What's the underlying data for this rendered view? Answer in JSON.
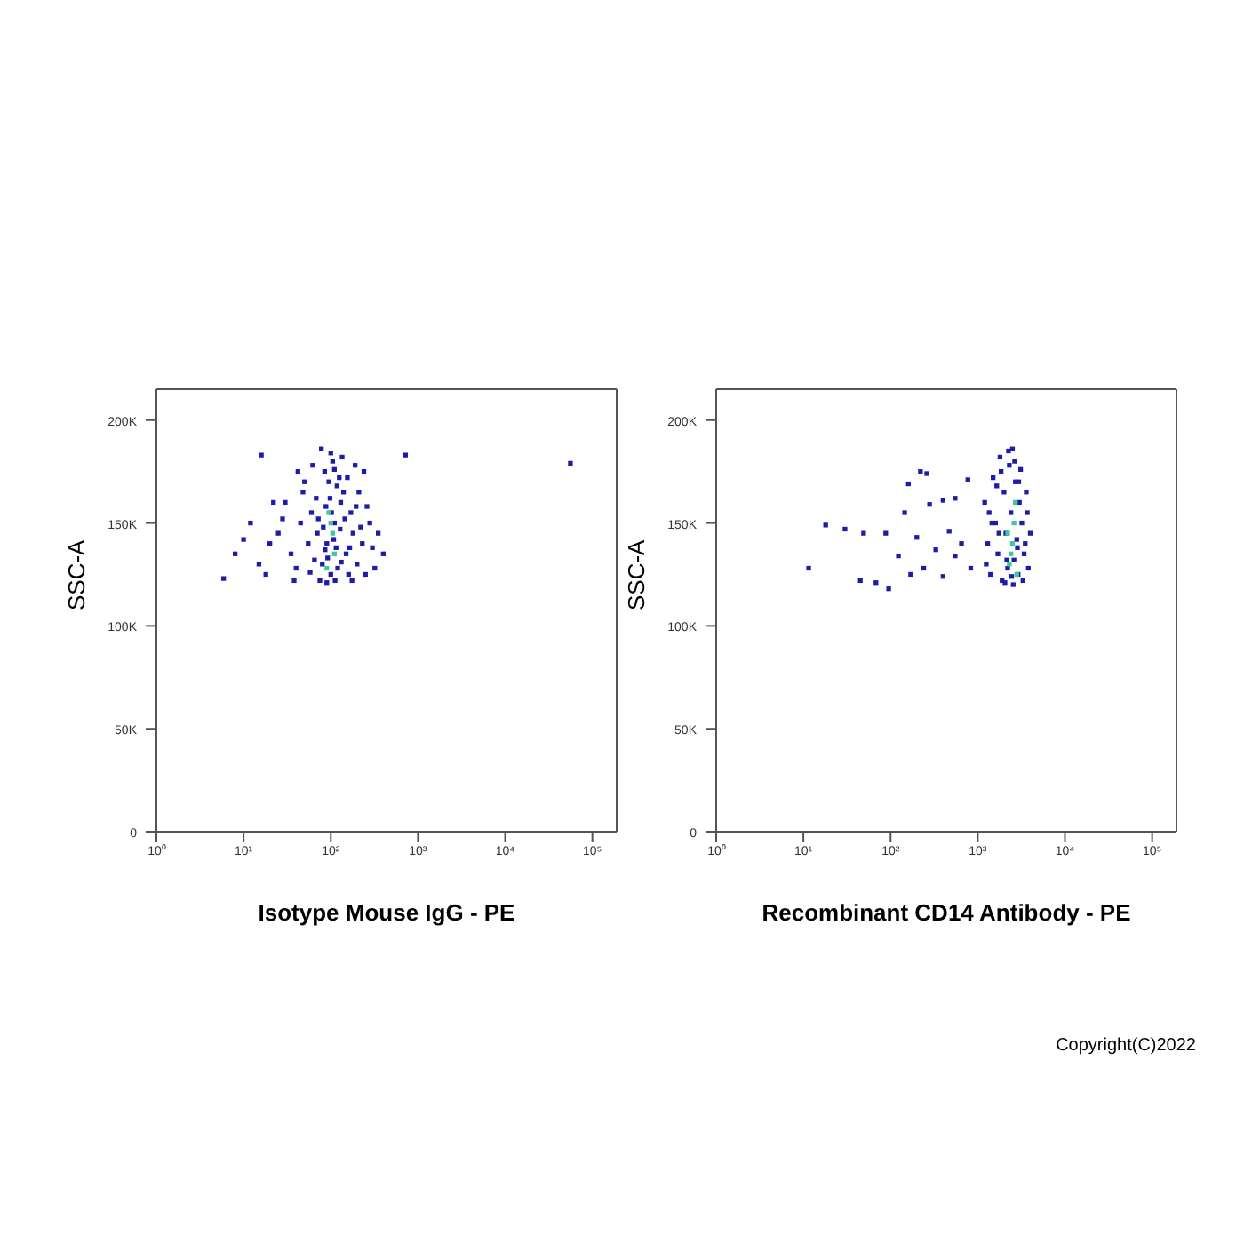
{
  "chart_data": [
    {
      "type": "scatter",
      "xlabel": "Isotype Mouse IgG - PE",
      "ylabel": "SSC-A",
      "log": "x",
      "marker": "square",
      "xlim": [
        1,
        190000
      ],
      "ylim": [
        0,
        215000
      ],
      "xticks": [
        {
          "value": 1,
          "label": "10⁰"
        },
        {
          "value": 10,
          "label": "10¹"
        },
        {
          "value": 100,
          "label": "10²"
        },
        {
          "value": 1000,
          "label": "10³"
        },
        {
          "value": 10000,
          "label": "10⁴"
        },
        {
          "value": 100000,
          "label": "10⁵"
        }
      ],
      "yticks": [
        0,
        {
          "value": 50000,
          "label": "50K"
        },
        {
          "value": 100000,
          "label": "100K"
        },
        {
          "value": 150000,
          "label": "150K"
        },
        {
          "value": 200000,
          "label": "200K"
        }
      ],
      "series": [
        {
          "color": "#1c1ca8",
          "x": [
            100,
            80,
            120,
            90,
            110,
            70,
            130,
            95,
            105,
            85,
            150,
            60,
            140,
            75,
            160,
            115,
            88,
            125,
            100,
            65,
            180,
            200,
            170,
            55,
            45,
            40,
            35,
            30,
            50,
            210,
            230,
            250,
            300,
            280,
            240,
            190,
            135,
            78,
            62,
            48,
            25,
            20,
            15,
            12,
            10,
            8,
            18,
            22,
            28,
            38,
            42,
            58,
            68,
            82,
            92,
            98,
            108,
            112,
            118,
            128,
            145,
            155,
            165,
            175,
            195,
            220,
            260,
            350,
            400,
            320,
            5.9,
            16,
            720,
            56000,
            90,
            102,
            86,
            132,
            72,
            110
          ],
          "values": [
            125000,
            130000,
            128000,
            140000,
            150000,
            145000,
            160000,
            170000,
            180000,
            175000,
            135000,
            155000,
            165000,
            122000,
            125000,
            138000,
            158000,
            172000,
            184000,
            132000,
            145000,
            130000,
            155000,
            140000,
            150000,
            128000,
            135000,
            160000,
            170000,
            165000,
            140000,
            125000,
            138000,
            150000,
            175000,
            178000,
            182000,
            186000,
            178000,
            165000,
            145000,
            140000,
            130000,
            150000,
            142000,
            135000,
            125000,
            160000,
            152000,
            122000,
            175000,
            126000,
            162000,
            148000,
            133000,
            162000,
            142000,
            122000,
            168000,
            147000,
            152000,
            172000,
            138000,
            122000,
            158000,
            148000,
            158000,
            145000,
            135000,
            128000,
            123000,
            183000,
            183000,
            179000,
            121000,
            155000,
            137000,
            131000,
            152000,
            176000
          ]
        },
        {
          "color": "#3cc8a0",
          "x": [
            100,
            105,
            95,
            110,
            90
          ],
          "values": [
            150000,
            145000,
            155000,
            135000,
            128000
          ]
        }
      ]
    },
    {
      "type": "scatter",
      "xlabel": "Recombinant CD14 Antibody - PE",
      "ylabel": "SSC-A",
      "log": "x",
      "marker": "square",
      "xlim": [
        1,
        190000
      ],
      "ylim": [
        0,
        215000
      ],
      "xticks": [
        {
          "value": 1,
          "label": "10⁰"
        },
        {
          "value": 10,
          "label": "10¹"
        },
        {
          "value": 100,
          "label": "10²"
        },
        {
          "value": 1000,
          "label": "10³"
        },
        {
          "value": 10000,
          "label": "10⁴"
        },
        {
          "value": 100000,
          "label": "10⁵"
        }
      ],
      "yticks": [
        0,
        {
          "value": 50000,
          "label": "50K"
        },
        {
          "value": 100000,
          "label": "100K"
        },
        {
          "value": 150000,
          "label": "150K"
        },
        {
          "value": 200000,
          "label": "200K"
        }
      ],
      "annotations": [
        "Copyright(C)2022"
      ],
      "series": [
        {
          "color": "#1c1ca8",
          "x": [
            11.5,
            18,
            30,
            49,
            88,
            68,
            95,
            145,
            160,
            220,
            260,
            280,
            400,
            550,
            770,
            650,
            330,
            240,
            170,
            400,
            123,
            550,
            830,
            45,
            200,
            470,
            1200,
            1300,
            1400,
            1500,
            1600,
            1700,
            1800,
            1900,
            2000,
            2100,
            2200,
            2300,
            2400,
            2500,
            2600,
            2700,
            2800,
            2900,
            3000,
            3200,
            3400,
            3600,
            3800,
            4000,
            1250,
            1450,
            1650,
            1850,
            2050,
            2250,
            2450,
            2650,
            2850,
            3100,
            3300,
            3500,
            1350,
            1750,
            2150,
            2550,
            2950,
            3700
          ],
          "values": [
            128000,
            149000,
            147000,
            145000,
            145000,
            121000,
            118000,
            155000,
            169000,
            175000,
            174000,
            159000,
            161000,
            162000,
            171000,
            140000,
            137000,
            128000,
            125000,
            124000,
            134000,
            134000,
            128000,
            122000,
            143000,
            146000,
            160000,
            140000,
            125000,
            172000,
            150000,
            135000,
            182000,
            122000,
            165000,
            145000,
            128000,
            178000,
            155000,
            186000,
            132000,
            170000,
            142000,
            125000,
            160000,
            150000,
            135000,
            165000,
            128000,
            145000,
            130000,
            150000,
            168000,
            175000,
            121000,
            185000,
            124000,
            180000,
            138000,
            176000,
            122000,
            140000,
            155000,
            145000,
            132000,
            120000,
            170000,
            155000
          ]
        },
        {
          "color": "#3cc8a0",
          "x": [
            2500,
            2400,
            2600,
            2300,
            2700,
            2200,
            2800
          ],
          "values": [
            140000,
            135000,
            150000,
            130000,
            160000,
            145000,
            125000
          ]
        }
      ]
    }
  ]
}
